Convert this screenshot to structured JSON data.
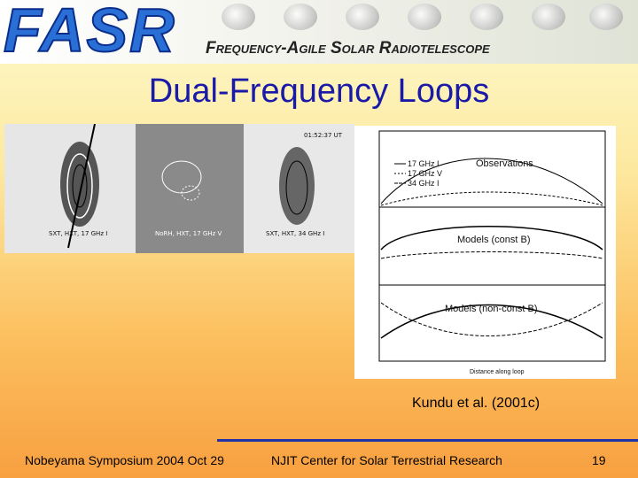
{
  "header": {
    "logo": "FASR",
    "subtitle": "Frequency-Agile Solar Radiotelescope"
  },
  "title": "Dual-Frequency Loops",
  "figure": {
    "images": [
      {
        "time": "",
        "caption": "SXT, HXT, 17 GHz I"
      },
      {
        "time": "",
        "caption": "NoRH, HXT, 17 GHz V"
      },
      {
        "time": "01:52:37 UT",
        "caption": "SXT, HXT, 34 GHz I"
      }
    ],
    "plot": {
      "legend": [
        "17 GHz I",
        "17 GHz V",
        "34 GHz I"
      ],
      "panels": [
        "Observations",
        "Models (const B)",
        "Models (non-const B)"
      ],
      "x_label": "Distance along loop"
    }
  },
  "citation": "Kundu et al. (2001c)",
  "footer": {
    "left": "Nobeyama Symposium 2004 Oct 29",
    "center": "NJIT Center for Solar Terrestrial Research",
    "page": "19"
  }
}
